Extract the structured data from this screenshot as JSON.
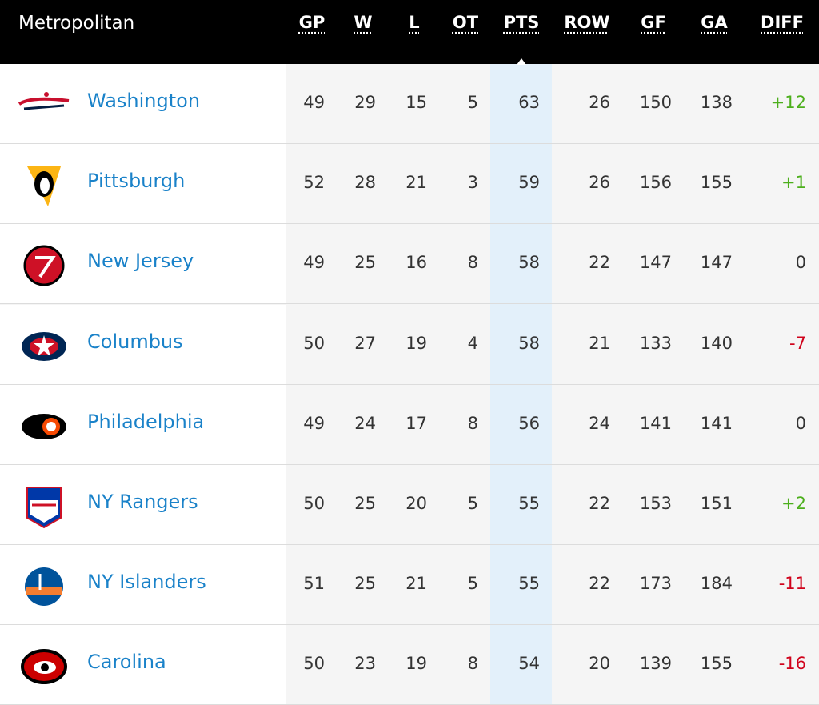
{
  "header": {
    "title": "Metropolitan"
  },
  "columns": [
    "GP",
    "W",
    "L",
    "OT",
    "PTS",
    "ROW",
    "GF",
    "GA",
    "DIFF"
  ],
  "sorted_column": "PTS",
  "rows": [
    {
      "team": "Washington",
      "stats": [
        49,
        29,
        15,
        5,
        63,
        26,
        150,
        138,
        "+12"
      ]
    },
    {
      "team": "Pittsburgh",
      "stats": [
        52,
        28,
        21,
        3,
        59,
        26,
        156,
        155,
        "+1"
      ]
    },
    {
      "team": "New Jersey",
      "stats": [
        49,
        25,
        16,
        8,
        58,
        22,
        147,
        147,
        0
      ]
    },
    {
      "team": "Columbus",
      "stats": [
        50,
        27,
        19,
        4,
        58,
        21,
        133,
        140,
        "-7"
      ]
    },
    {
      "team": "Philadelphia",
      "stats": [
        49,
        24,
        17,
        8,
        56,
        24,
        141,
        141,
        0
      ]
    },
    {
      "team": "NY Rangers",
      "stats": [
        50,
        25,
        20,
        5,
        55,
        22,
        153,
        151,
        "+2"
      ]
    },
    {
      "team": "NY Islanders",
      "stats": [
        51,
        25,
        21,
        5,
        55,
        22,
        173,
        184,
        "-11"
      ]
    },
    {
      "team": "Carolina",
      "stats": [
        50,
        23,
        19,
        8,
        54,
        20,
        139,
        155,
        "-16"
      ]
    }
  ]
}
